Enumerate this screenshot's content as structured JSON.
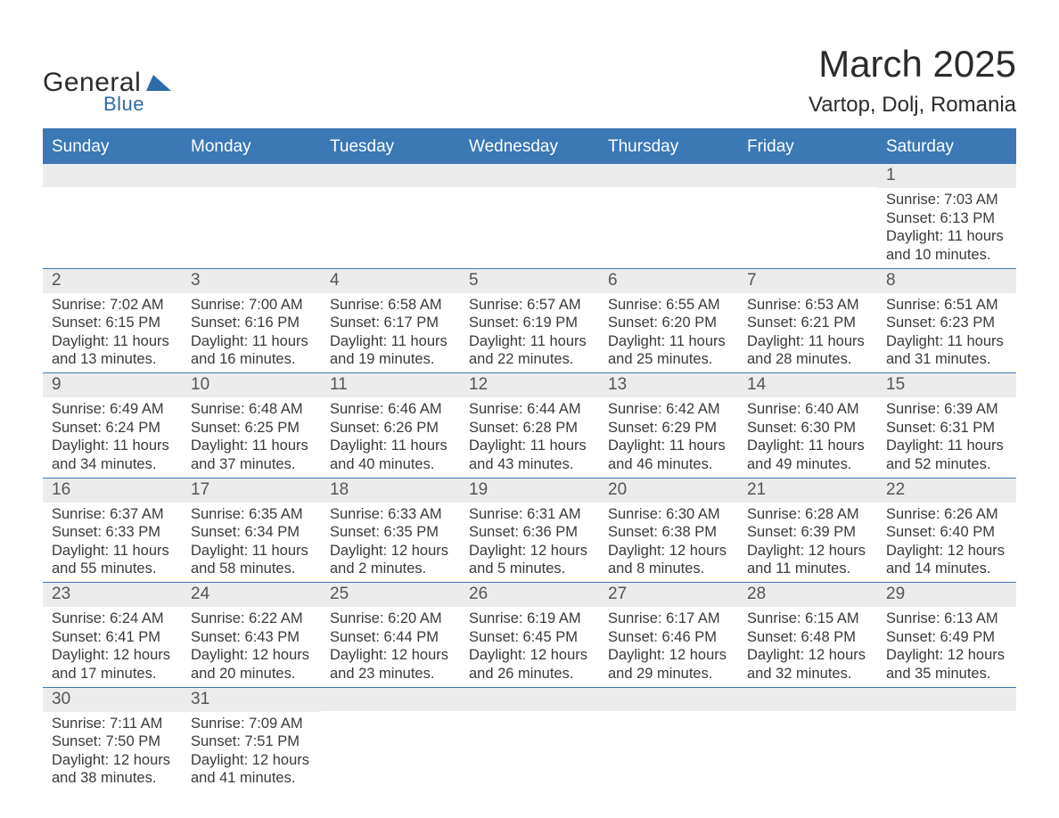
{
  "logo": {
    "word1": "General",
    "word2": "Blue",
    "word1_color": "#2b2b2b",
    "word2_color": "#2d6ca8",
    "shape_color": "#2d6ca8"
  },
  "title": "March 2025",
  "location": "Vartop, Dolj, Romania",
  "colors": {
    "header_bg": "#3b78b5",
    "header_text": "#ffffff",
    "daynum_bg": "#ececec",
    "daynum_text": "#555555",
    "body_text": "#3a3a3a",
    "week_divider": "#3b78b5",
    "page_bg": "#ffffff"
  },
  "typography": {
    "title_fontsize": 42,
    "location_fontsize": 24,
    "dayheader_fontsize": 19,
    "daynum_fontsize": 19,
    "cell_fontsize": 16.5,
    "font_family": "Arial"
  },
  "day_names": [
    "Sunday",
    "Monday",
    "Tuesday",
    "Wednesday",
    "Thursday",
    "Friday",
    "Saturday"
  ],
  "weeks": [
    [
      {
        "day": "",
        "sunrise": "",
        "sunset": "",
        "daylight1": "",
        "daylight2": ""
      },
      {
        "day": "",
        "sunrise": "",
        "sunset": "",
        "daylight1": "",
        "daylight2": ""
      },
      {
        "day": "",
        "sunrise": "",
        "sunset": "",
        "daylight1": "",
        "daylight2": ""
      },
      {
        "day": "",
        "sunrise": "",
        "sunset": "",
        "daylight1": "",
        "daylight2": ""
      },
      {
        "day": "",
        "sunrise": "",
        "sunset": "",
        "daylight1": "",
        "daylight2": ""
      },
      {
        "day": "",
        "sunrise": "",
        "sunset": "",
        "daylight1": "",
        "daylight2": ""
      },
      {
        "day": "1",
        "sunrise": "Sunrise: 7:03 AM",
        "sunset": "Sunset: 6:13 PM",
        "daylight1": "Daylight: 11 hours",
        "daylight2": "and 10 minutes."
      }
    ],
    [
      {
        "day": "2",
        "sunrise": "Sunrise: 7:02 AM",
        "sunset": "Sunset: 6:15 PM",
        "daylight1": "Daylight: 11 hours",
        "daylight2": "and 13 minutes."
      },
      {
        "day": "3",
        "sunrise": "Sunrise: 7:00 AM",
        "sunset": "Sunset: 6:16 PM",
        "daylight1": "Daylight: 11 hours",
        "daylight2": "and 16 minutes."
      },
      {
        "day": "4",
        "sunrise": "Sunrise: 6:58 AM",
        "sunset": "Sunset: 6:17 PM",
        "daylight1": "Daylight: 11 hours",
        "daylight2": "and 19 minutes."
      },
      {
        "day": "5",
        "sunrise": "Sunrise: 6:57 AM",
        "sunset": "Sunset: 6:19 PM",
        "daylight1": "Daylight: 11 hours",
        "daylight2": "and 22 minutes."
      },
      {
        "day": "6",
        "sunrise": "Sunrise: 6:55 AM",
        "sunset": "Sunset: 6:20 PM",
        "daylight1": "Daylight: 11 hours",
        "daylight2": "and 25 minutes."
      },
      {
        "day": "7",
        "sunrise": "Sunrise: 6:53 AM",
        "sunset": "Sunset: 6:21 PM",
        "daylight1": "Daylight: 11 hours",
        "daylight2": "and 28 minutes."
      },
      {
        "day": "8",
        "sunrise": "Sunrise: 6:51 AM",
        "sunset": "Sunset: 6:23 PM",
        "daylight1": "Daylight: 11 hours",
        "daylight2": "and 31 minutes."
      }
    ],
    [
      {
        "day": "9",
        "sunrise": "Sunrise: 6:49 AM",
        "sunset": "Sunset: 6:24 PM",
        "daylight1": "Daylight: 11 hours",
        "daylight2": "and 34 minutes."
      },
      {
        "day": "10",
        "sunrise": "Sunrise: 6:48 AM",
        "sunset": "Sunset: 6:25 PM",
        "daylight1": "Daylight: 11 hours",
        "daylight2": "and 37 minutes."
      },
      {
        "day": "11",
        "sunrise": "Sunrise: 6:46 AM",
        "sunset": "Sunset: 6:26 PM",
        "daylight1": "Daylight: 11 hours",
        "daylight2": "and 40 minutes."
      },
      {
        "day": "12",
        "sunrise": "Sunrise: 6:44 AM",
        "sunset": "Sunset: 6:28 PM",
        "daylight1": "Daylight: 11 hours",
        "daylight2": "and 43 minutes."
      },
      {
        "day": "13",
        "sunrise": "Sunrise: 6:42 AM",
        "sunset": "Sunset: 6:29 PM",
        "daylight1": "Daylight: 11 hours",
        "daylight2": "and 46 minutes."
      },
      {
        "day": "14",
        "sunrise": "Sunrise: 6:40 AM",
        "sunset": "Sunset: 6:30 PM",
        "daylight1": "Daylight: 11 hours",
        "daylight2": "and 49 minutes."
      },
      {
        "day": "15",
        "sunrise": "Sunrise: 6:39 AM",
        "sunset": "Sunset: 6:31 PM",
        "daylight1": "Daylight: 11 hours",
        "daylight2": "and 52 minutes."
      }
    ],
    [
      {
        "day": "16",
        "sunrise": "Sunrise: 6:37 AM",
        "sunset": "Sunset: 6:33 PM",
        "daylight1": "Daylight: 11 hours",
        "daylight2": "and 55 minutes."
      },
      {
        "day": "17",
        "sunrise": "Sunrise: 6:35 AM",
        "sunset": "Sunset: 6:34 PM",
        "daylight1": "Daylight: 11 hours",
        "daylight2": "and 58 minutes."
      },
      {
        "day": "18",
        "sunrise": "Sunrise: 6:33 AM",
        "sunset": "Sunset: 6:35 PM",
        "daylight1": "Daylight: 12 hours",
        "daylight2": "and 2 minutes."
      },
      {
        "day": "19",
        "sunrise": "Sunrise: 6:31 AM",
        "sunset": "Sunset: 6:36 PM",
        "daylight1": "Daylight: 12 hours",
        "daylight2": "and 5 minutes."
      },
      {
        "day": "20",
        "sunrise": "Sunrise: 6:30 AM",
        "sunset": "Sunset: 6:38 PM",
        "daylight1": "Daylight: 12 hours",
        "daylight2": "and 8 minutes."
      },
      {
        "day": "21",
        "sunrise": "Sunrise: 6:28 AM",
        "sunset": "Sunset: 6:39 PM",
        "daylight1": "Daylight: 12 hours",
        "daylight2": "and 11 minutes."
      },
      {
        "day": "22",
        "sunrise": "Sunrise: 6:26 AM",
        "sunset": "Sunset: 6:40 PM",
        "daylight1": "Daylight: 12 hours",
        "daylight2": "and 14 minutes."
      }
    ],
    [
      {
        "day": "23",
        "sunrise": "Sunrise: 6:24 AM",
        "sunset": "Sunset: 6:41 PM",
        "daylight1": "Daylight: 12 hours",
        "daylight2": "and 17 minutes."
      },
      {
        "day": "24",
        "sunrise": "Sunrise: 6:22 AM",
        "sunset": "Sunset: 6:43 PM",
        "daylight1": "Daylight: 12 hours",
        "daylight2": "and 20 minutes."
      },
      {
        "day": "25",
        "sunrise": "Sunrise: 6:20 AM",
        "sunset": "Sunset: 6:44 PM",
        "daylight1": "Daylight: 12 hours",
        "daylight2": "and 23 minutes."
      },
      {
        "day": "26",
        "sunrise": "Sunrise: 6:19 AM",
        "sunset": "Sunset: 6:45 PM",
        "daylight1": "Daylight: 12 hours",
        "daylight2": "and 26 minutes."
      },
      {
        "day": "27",
        "sunrise": "Sunrise: 6:17 AM",
        "sunset": "Sunset: 6:46 PM",
        "daylight1": "Daylight: 12 hours",
        "daylight2": "and 29 minutes."
      },
      {
        "day": "28",
        "sunrise": "Sunrise: 6:15 AM",
        "sunset": "Sunset: 6:48 PM",
        "daylight1": "Daylight: 12 hours",
        "daylight2": "and 32 minutes."
      },
      {
        "day": "29",
        "sunrise": "Sunrise: 6:13 AM",
        "sunset": "Sunset: 6:49 PM",
        "daylight1": "Daylight: 12 hours",
        "daylight2": "and 35 minutes."
      }
    ],
    [
      {
        "day": "30",
        "sunrise": "Sunrise: 7:11 AM",
        "sunset": "Sunset: 7:50 PM",
        "daylight1": "Daylight: 12 hours",
        "daylight2": "and 38 minutes."
      },
      {
        "day": "31",
        "sunrise": "Sunrise: 7:09 AM",
        "sunset": "Sunset: 7:51 PM",
        "daylight1": "Daylight: 12 hours",
        "daylight2": "and 41 minutes."
      },
      {
        "day": "",
        "sunrise": "",
        "sunset": "",
        "daylight1": "",
        "daylight2": ""
      },
      {
        "day": "",
        "sunrise": "",
        "sunset": "",
        "daylight1": "",
        "daylight2": ""
      },
      {
        "day": "",
        "sunrise": "",
        "sunset": "",
        "daylight1": "",
        "daylight2": ""
      },
      {
        "day": "",
        "sunrise": "",
        "sunset": "",
        "daylight1": "",
        "daylight2": ""
      },
      {
        "day": "",
        "sunrise": "",
        "sunset": "",
        "daylight1": "",
        "daylight2": ""
      }
    ]
  ]
}
